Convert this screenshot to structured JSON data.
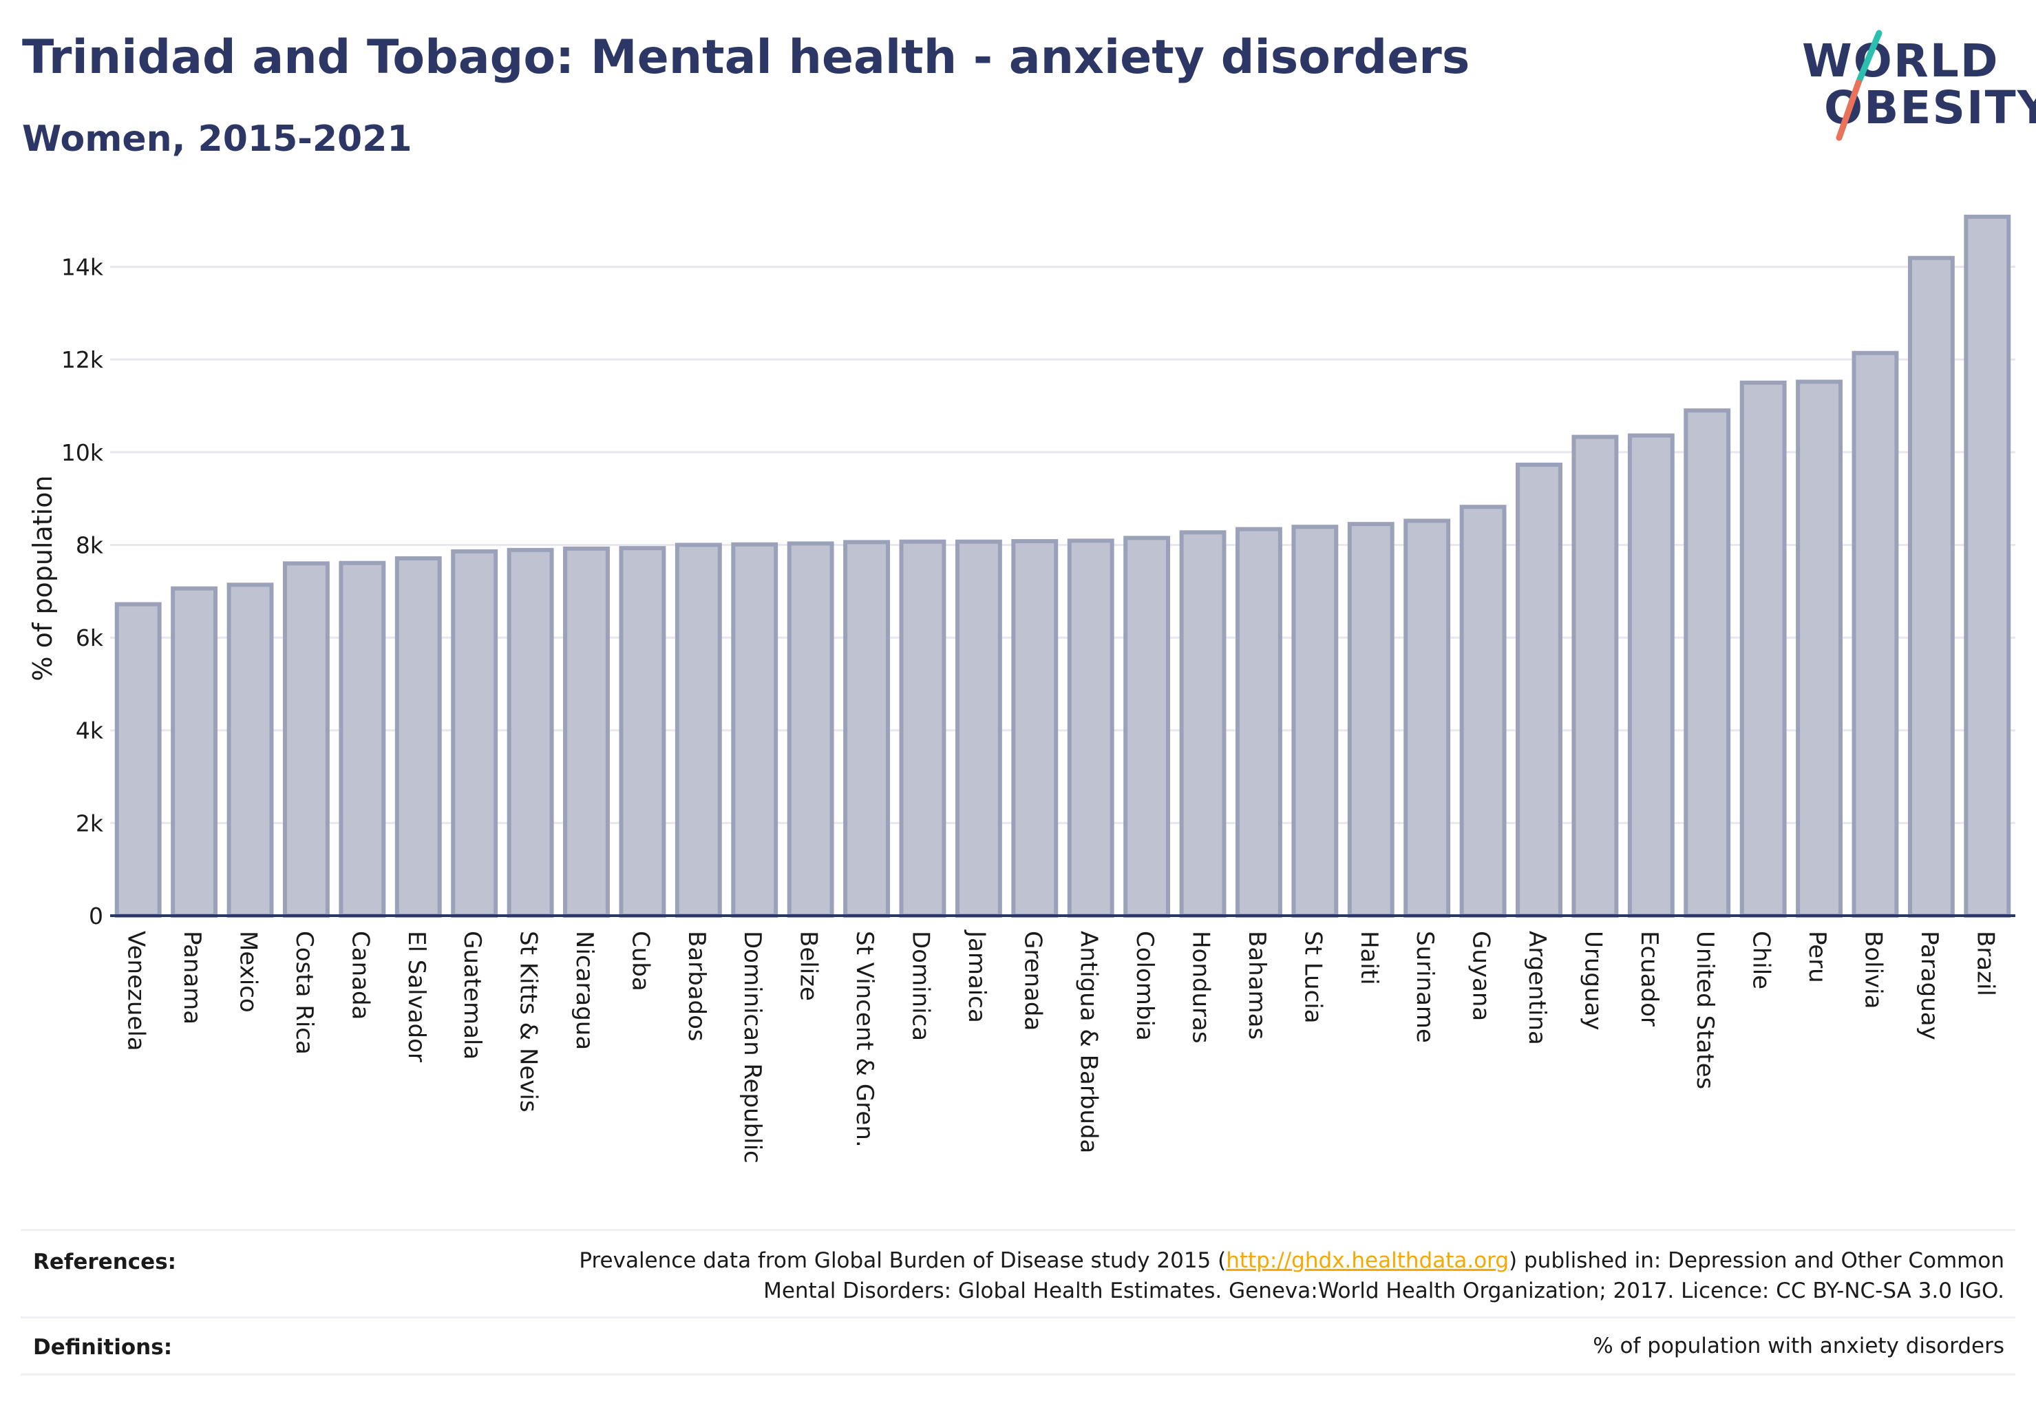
{
  "header": {
    "title": "Trinidad and Tobago: Mental health - anxiety disorders",
    "subtitle": "Women, 2015-2021"
  },
  "logo": {
    "line1": "WORLD",
    "line2": "OBESITY",
    "colors": {
      "text": "#2c3766",
      "slash_top": "#2bbfb0",
      "slash_bottom": "#e8735a"
    }
  },
  "chart_data": {
    "type": "bar",
    "ylabel": "% of population",
    "yticks": [
      "0",
      "2k",
      "4k",
      "6k",
      "8k",
      "10k",
      "12k",
      "14k"
    ],
    "ylim": [
      0,
      15300
    ],
    "grid": true,
    "bar_color": "#bfc3d1",
    "bar_edge_color": "#9ba1b8",
    "categories": [
      "Venezuela",
      "Panama",
      "Mexico",
      "Costa Rica",
      "Canada",
      "El Salvador",
      "Guatemala",
      "St Kitts & Nevis",
      "Nicaragua",
      "Cuba",
      "Barbados",
      "Dominican Republic",
      "Belize",
      "St Vincent & Gren.",
      "Dominica",
      "Jamaica",
      "Grenada",
      "Antigua & Barbuda",
      "Colombia",
      "Honduras",
      "Bahamas",
      "St Lucia",
      "Haiti",
      "Suriname",
      "Guyana",
      "Argentina",
      "Uruguay",
      "Ecuador",
      "United States",
      "Chile",
      "Peru",
      "Bolivia",
      "Paraguay",
      "Brazil"
    ],
    "values": [
      6720,
      7060,
      7140,
      7600,
      7610,
      7710,
      7860,
      7890,
      7920,
      7930,
      8000,
      8010,
      8030,
      8060,
      8070,
      8070,
      8080,
      8090,
      8150,
      8270,
      8340,
      8390,
      8450,
      8520,
      8820,
      9730,
      10330,
      10360,
      10900,
      11500,
      11520,
      12140,
      14190,
      15080
    ]
  },
  "references": {
    "label": "References:",
    "text_before": "Prevalence data from Global Burden of Disease study 2015 (",
    "link": "http://ghdx.healthdata.org",
    "text_after": ") published in: Depression and Other Common",
    "line2": "Mental Disorders: Global Health Estimates. Geneva:World Health Organization; 2017. Licence: CC BY-NC-SA 3.0 IGO."
  },
  "definitions": {
    "label": "Definitions:",
    "text": "% of population with anxiety disorders"
  }
}
